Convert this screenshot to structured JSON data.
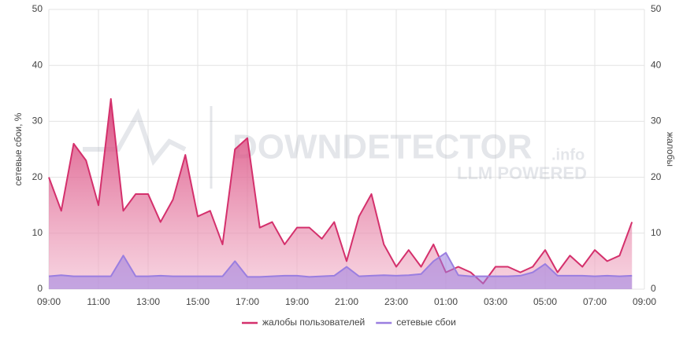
{
  "chart_data": {
    "type": "line",
    "ylabel": "сетевые сбои, %",
    "y2label": "жалобы",
    "watermark": [
      "DOWNDETECTOR",
      ".info",
      "LLM POWERED"
    ],
    "categories": [
      "09:00",
      null,
      null,
      null,
      "11:00",
      null,
      null,
      null,
      "13:00",
      null,
      null,
      null,
      "15:00",
      null,
      null,
      null,
      "17:00",
      null,
      null,
      null,
      "19:00",
      null,
      null,
      null,
      "21:00",
      null,
      null,
      null,
      "23:00",
      null,
      null,
      null,
      "01:00",
      null,
      null,
      null,
      "03:00",
      null,
      null,
      null,
      "05:00",
      null,
      null,
      null,
      "07:00",
      null,
      null,
      null,
      "09:00"
    ],
    "series": [
      {
        "name": "жалобы пользователей",
        "color": "#d4306c",
        "axis": "y2",
        "values": [
          20,
          14,
          26,
          23,
          15,
          34,
          14,
          17,
          17,
          12,
          16,
          24,
          13,
          14,
          8,
          25,
          27,
          11,
          12,
          8,
          11,
          11,
          9,
          12,
          5,
          13,
          17,
          8,
          4,
          7,
          4,
          8,
          3,
          4,
          3,
          1,
          4,
          4,
          3,
          4,
          7,
          3,
          6,
          4,
          7,
          5,
          6,
          12,
          null
        ]
      },
      {
        "name": "сетевые сбои",
        "color": "#9a7ee0",
        "values": [
          2.3,
          2.5,
          2.3,
          2.3,
          2.3,
          2.3,
          6,
          2.3,
          2.3,
          2.4,
          2.3,
          2.3,
          2.3,
          2.3,
          2.3,
          5,
          2.2,
          2.2,
          2.3,
          2.4,
          2.4,
          2.2,
          2.3,
          2.4,
          4,
          2.3,
          2.4,
          2.5,
          2.4,
          2.5,
          2.7,
          5,
          6.5,
          2.5,
          2.3,
          2.3,
          2.3,
          2.3,
          2.4,
          3,
          4.5,
          2.4,
          2.4,
          2.4,
          2.3,
          2.4,
          2.3,
          2.4,
          null
        ]
      }
    ],
    "ylim": [
      0,
      50
    ],
    "yticks": [
      0,
      10,
      20,
      30,
      40,
      50
    ],
    "y2lim": [
      0,
      50
    ],
    "y2ticks": [
      0,
      10,
      20,
      30,
      40,
      50
    ],
    "grid": true,
    "legend": "bottom"
  }
}
